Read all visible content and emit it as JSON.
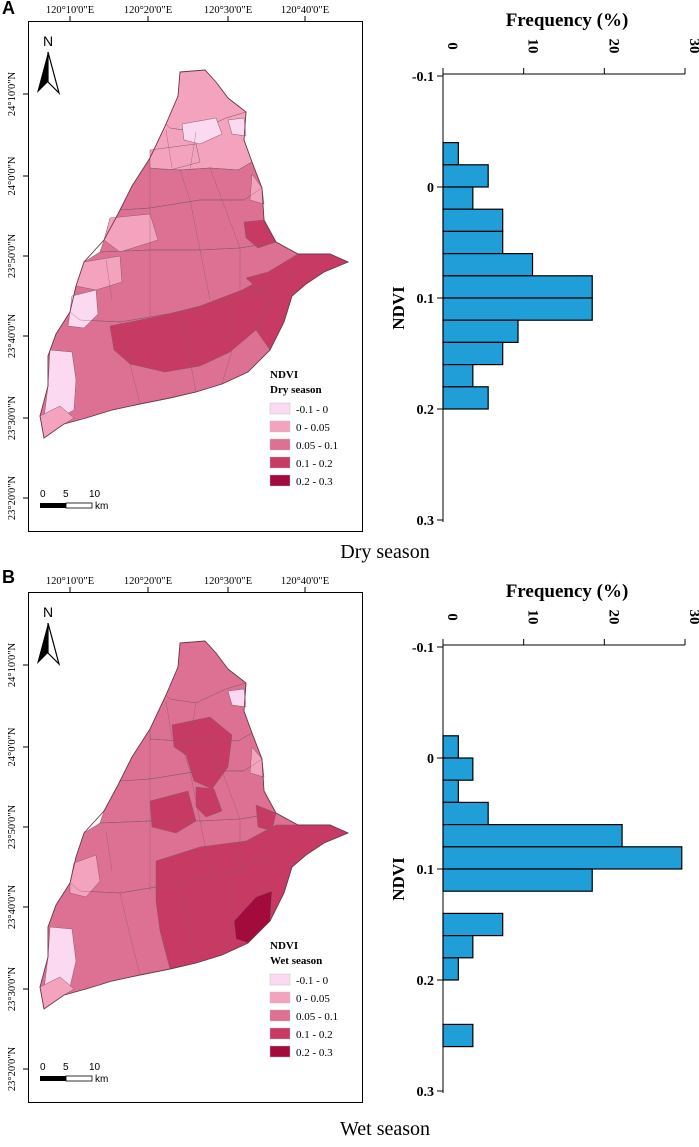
{
  "panels": [
    {
      "letter": "A",
      "caption": "Dry season",
      "map": {
        "lon_labels": [
          "120°10'0\"E",
          "120°20'0\"E",
          "120°30'0\"E",
          "120°40'0\"E"
        ],
        "lat_labels": [
          "24°10'0\"N",
          "24°0'0\"N",
          "23°50'0\"N",
          "23°40'0\"N",
          "23°30'0\"N",
          "23°20'0\"N"
        ],
        "north": "N",
        "legend_title": "NDVI",
        "legend_subtitle": "Dry season",
        "legend_items": [
          {
            "label": "-0.1 - 0",
            "color": "#fbd9f1"
          },
          {
            "label": "0 - 0.05",
            "color": "#f4a3be"
          },
          {
            "label": "0.05 - 0.1",
            "color": "#dc7193"
          },
          {
            "label": "0.1 - 0.2",
            "color": "#c73a63"
          },
          {
            "label": "0.2 - 0.3",
            "color": "#a30b3c"
          }
        ],
        "scale_labels": [
          "0",
          "5",
          "10"
        ],
        "scale_unit": "km"
      },
      "chart_data": {
        "type": "bar",
        "orientation": "horizontal",
        "title": "Frequency (%)",
        "xlabel": "Frequency (%)",
        "ylabel": "NDVI",
        "xlim": [
          0,
          30
        ],
        "ylim": [
          -0.1,
          0.3
        ],
        "xticks": [
          0,
          10,
          20,
          30
        ],
        "yticks": [
          "-0.1",
          "0",
          "0.1",
          "0.2",
          "0.3"
        ],
        "bin_width": 0.02,
        "bins": [
          {
            "start": -0.04,
            "value": 1.9
          },
          {
            "start": -0.02,
            "value": 5.6
          },
          {
            "start": 0.0,
            "value": 3.7
          },
          {
            "start": 0.02,
            "value": 7.4
          },
          {
            "start": 0.04,
            "value": 7.4
          },
          {
            "start": 0.06,
            "value": 11.1
          },
          {
            "start": 0.08,
            "value": 18.5
          },
          {
            "start": 0.1,
            "value": 18.5
          },
          {
            "start": 0.12,
            "value": 9.3
          },
          {
            "start": 0.14,
            "value": 7.4
          },
          {
            "start": 0.16,
            "value": 3.7
          },
          {
            "start": 0.18,
            "value": 5.6
          }
        ]
      }
    },
    {
      "letter": "B",
      "caption": "Wet season",
      "map": {
        "lon_labels": [
          "120°10'0\"E",
          "120°20'0\"E",
          "120°30'0\"E",
          "120°40'0\"E"
        ],
        "lat_labels": [
          "24°10'0\"N",
          "24°0'0\"N",
          "23°50'0\"N",
          "23°40'0\"N",
          "23°30'0\"N",
          "23°20'0\"N"
        ],
        "north": "N",
        "legend_title": "NDVI",
        "legend_subtitle": "Wet season",
        "legend_items": [
          {
            "label": "-0.1 - 0",
            "color": "#fbd9f1"
          },
          {
            "label": "0 - 0.05",
            "color": "#f4a3be"
          },
          {
            "label": "0.05 - 0.1",
            "color": "#dc7193"
          },
          {
            "label": "0.1 - 0.2",
            "color": "#c73a63"
          },
          {
            "label": "0.2 - 0.3",
            "color": "#a30b3c"
          }
        ],
        "scale_labels": [
          "0",
          "5",
          "10"
        ],
        "scale_unit": "km"
      },
      "chart_data": {
        "type": "bar",
        "orientation": "horizontal",
        "title": "Frequency (%)",
        "xlabel": "Frequency (%)",
        "ylabel": "NDVI",
        "xlim": [
          0,
          30
        ],
        "ylim": [
          -0.1,
          0.3
        ],
        "xticks": [
          0,
          10,
          20,
          30
        ],
        "yticks": [
          "-0.1",
          "0",
          "0.1",
          "0.2",
          "0.3"
        ],
        "bin_width": 0.02,
        "bins": [
          {
            "start": -0.02,
            "value": 1.9
          },
          {
            "start": 0.0,
            "value": 3.7
          },
          {
            "start": 0.02,
            "value": 1.9
          },
          {
            "start": 0.04,
            "value": 5.6
          },
          {
            "start": 0.06,
            "value": 22.2
          },
          {
            "start": 0.08,
            "value": 29.6
          },
          {
            "start": 0.1,
            "value": 18.5
          },
          {
            "start": 0.14,
            "value": 7.4
          },
          {
            "start": 0.16,
            "value": 3.7
          },
          {
            "start": 0.18,
            "value": 1.9
          },
          {
            "start": 0.24,
            "value": 3.7
          }
        ]
      }
    }
  ],
  "colors": {
    "bar_fill": "#1f9ed8",
    "bar_stroke": "#000000",
    "region_border": "#8a5a6a"
  }
}
